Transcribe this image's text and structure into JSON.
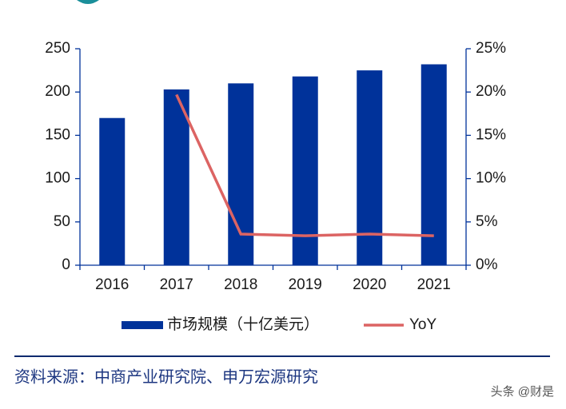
{
  "chart_data": {
    "type": "bar",
    "categories": [
      "2016",
      "2017",
      "2018",
      "2019",
      "2020",
      "2021"
    ],
    "series": [
      {
        "name": "市场规模（十亿美元）",
        "type": "bar",
        "color": "#00329a",
        "values": [
          170,
          203,
          210,
          218,
          225,
          232
        ]
      },
      {
        "name": "YoY",
        "type": "line",
        "axis": "y2",
        "color": "#dc6463",
        "values": [
          null,
          19.7,
          3.6,
          3.4,
          3.6,
          3.4
        ]
      }
    ],
    "ylim": [
      0,
      250
    ],
    "yticks": [
      0,
      50,
      100,
      150,
      200,
      250
    ],
    "y2lim": [
      0,
      25
    ],
    "y2ticks": [
      {
        "value": 0,
        "label": "0%"
      },
      {
        "value": 5,
        "label": "5%"
      },
      {
        "value": 10,
        "label": "10%"
      },
      {
        "value": 15,
        "label": "15%"
      },
      {
        "value": 20,
        "label": "20%"
      },
      {
        "value": 25,
        "label": "25%"
      }
    ],
    "grid": false,
    "source": "资料来源：中商产业研究院、申万宏源研究",
    "watermark": "头条 @财是"
  }
}
